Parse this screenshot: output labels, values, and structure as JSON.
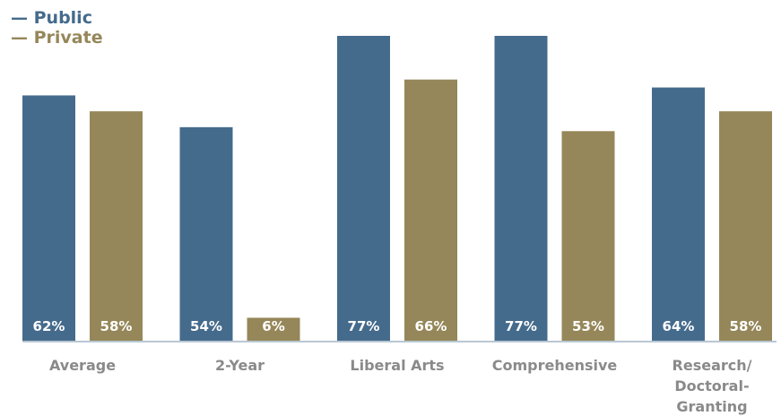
{
  "colors": {
    "public": "#456b8c",
    "private": "#958759",
    "axis": "#b9c7d3",
    "label": "#8a8a8a"
  },
  "chart_data": {
    "type": "bar",
    "title": "",
    "xlabel": "",
    "ylabel": "",
    "ylim": [
      0,
      77
    ],
    "legend_position": "top-left",
    "categories": [
      "Average",
      "2-Year",
      "Liberal Arts",
      "Comprehensive",
      "Research/ Doctoral- Granting"
    ],
    "category_lines": [
      [
        "Average"
      ],
      [
        "2-Year"
      ],
      [
        "Liberal Arts"
      ],
      [
        "Comprehensive"
      ],
      [
        "Research/",
        "Doctoral-",
        "Granting"
      ]
    ],
    "series": [
      {
        "name": "Public",
        "legend_label": "— Public",
        "values": [
          62,
          54,
          77,
          77,
          64
        ],
        "labels": [
          "62%",
          "54%",
          "77%",
          "77%",
          "64%"
        ]
      },
      {
        "name": "Private",
        "legend_label": "— Private",
        "values": [
          58,
          6,
          66,
          53,
          58
        ],
        "labels": [
          "58%",
          "6%",
          "66%",
          "53%",
          "58%"
        ]
      }
    ]
  }
}
